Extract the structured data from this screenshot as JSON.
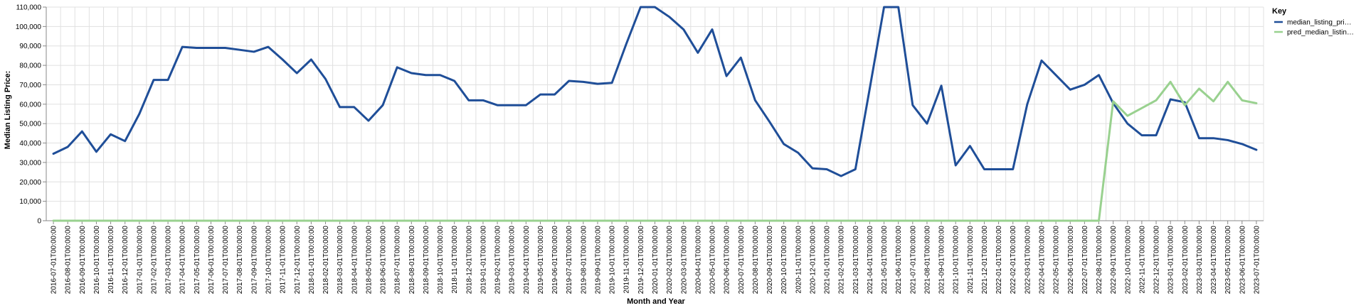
{
  "chart_data": {
    "type": "line",
    "xlabel": "Month and Year",
    "ylabel": "Median Listing Price:",
    "ylim": [
      0,
      110000
    ],
    "yticks": [
      "0",
      "10,000",
      "20,000",
      "30,000",
      "40,000",
      "50,000",
      "60,000",
      "70,000",
      "80,000",
      "90,000",
      "100,000",
      "110,000"
    ],
    "grid": true,
    "legend": {
      "title": "Key",
      "position": "right"
    },
    "x": [
      "2016-07-01T00:00:00",
      "2016-08-01T00:00:00",
      "2016-09-01T00:00:00",
      "2016-10-01T00:00:00",
      "2016-11-01T00:00:00",
      "2016-12-01T00:00:00",
      "2017-01-01T00:00:00",
      "2017-02-01T00:00:00",
      "2017-03-01T00:00:00",
      "2017-04-01T00:00:00",
      "2017-05-01T00:00:00",
      "2017-06-01T00:00:00",
      "2017-07-01T00:00:00",
      "2017-08-01T00:00:00",
      "2017-09-01T00:00:00",
      "2017-10-01T00:00:00",
      "2017-11-01T00:00:00",
      "2017-12-01T00:00:00",
      "2018-01-01T00:00:00",
      "2018-02-01T00:00:00",
      "2018-03-01T00:00:00",
      "2018-04-01T00:00:00",
      "2018-05-01T00:00:00",
      "2018-06-01T00:00:00",
      "2018-07-01T00:00:00",
      "2018-08-01T00:00:00",
      "2018-09-01T00:00:00",
      "2018-10-01T00:00:00",
      "2018-11-01T00:00:00",
      "2018-12-01T00:00:00",
      "2019-01-01T00:00:00",
      "2019-02-01T00:00:00",
      "2019-03-01T00:00:00",
      "2019-04-01T00:00:00",
      "2019-05-01T00:00:00",
      "2019-06-01T00:00:00",
      "2019-07-01T00:00:00",
      "2019-08-01T00:00:00",
      "2019-09-01T00:00:00",
      "2019-10-01T00:00:00",
      "2019-11-01T00:00:00",
      "2019-12-01T00:00:00",
      "2020-01-01T00:00:00",
      "2020-02-01T00:00:00",
      "2020-03-01T00:00:00",
      "2020-04-01T00:00:00",
      "2020-05-01T00:00:00",
      "2020-06-01T00:00:00",
      "2020-07-01T00:00:00",
      "2020-08-01T00:00:00",
      "2020-09-01T00:00:00",
      "2020-10-01T00:00:00",
      "2020-11-01T00:00:00",
      "2020-12-01T00:00:00",
      "2021-01-01T00:00:00",
      "2021-02-01T00:00:00",
      "2021-03-01T00:00:00",
      "2021-04-01T00:00:00",
      "2021-05-01T00:00:00",
      "2021-06-01T00:00:00",
      "2021-07-01T00:00:00",
      "2021-08-01T00:00:00",
      "2021-09-01T00:00:00",
      "2021-10-01T00:00:00",
      "2021-11-01T00:00:00",
      "2021-12-01T00:00:00",
      "2022-01-01T00:00:00",
      "2022-02-01T00:00:00",
      "2022-03-01T00:00:00",
      "2022-04-01T00:00:00",
      "2022-05-01T00:00:00",
      "2022-06-01T00:00:00",
      "2022-07-01T00:00:00",
      "2022-08-01T00:00:00",
      "2022-09-01T00:00:00",
      "2022-10-01T00:00:00",
      "2022-11-01T00:00:00",
      "2022-12-01T00:00:00",
      "2023-01-01T00:00:00",
      "2023-02-01T00:00:00",
      "2023-03-01T00:00:00",
      "2023-04-01T00:00:00",
      "2023-05-01T00:00:00",
      "2023-06-01T00:00:00",
      "2023-07-01T00:00:00"
    ],
    "series": [
      {
        "name": "median_listing_pri…",
        "color": "#1f4e98",
        "values": [
          34500,
          38000,
          46000,
          35500,
          44500,
          41000,
          55000,
          72500,
          72500,
          89500,
          89000,
          89000,
          89000,
          88000,
          87000,
          89500,
          83000,
          76000,
          83000,
          73000,
          58500,
          58500,
          51500,
          59500,
          79000,
          76000,
          75000,
          75000,
          72000,
          62000,
          62000,
          59500,
          59500,
          59500,
          65000,
          65000,
          72000,
          71500,
          70500,
          71000,
          91000,
          110000,
          110000,
          105000,
          98500,
          86500,
          98500,
          74500,
          84000,
          62000,
          51000,
          39500,
          35000,
          27000,
          26500,
          23000,
          26500,
          68000,
          110000,
          110000,
          59500,
          50000,
          69500,
          28500,
          38500,
          26500,
          26500,
          26500,
          60000,
          82500,
          75000,
          67500,
          70000,
          75000,
          60500,
          50000,
          44000,
          44000,
          62500,
          61000,
          42500,
          42500,
          41500,
          39500,
          36500
        ]
      },
      {
        "name": "pred_median_listin…",
        "color": "#99d18f",
        "values": [
          0,
          0,
          0,
          0,
          0,
          0,
          0,
          0,
          0,
          0,
          0,
          0,
          0,
          0,
          0,
          0,
          0,
          0,
          0,
          0,
          0,
          0,
          0,
          0,
          0,
          0,
          0,
          0,
          0,
          0,
          0,
          0,
          0,
          0,
          0,
          0,
          0,
          0,
          0,
          0,
          0,
          0,
          0,
          0,
          0,
          0,
          0,
          0,
          0,
          0,
          0,
          0,
          0,
          0,
          0,
          0,
          0,
          0,
          0,
          0,
          0,
          0,
          0,
          0,
          0,
          0,
          0,
          0,
          0,
          0,
          0,
          0,
          0,
          0,
          61500,
          54000,
          58000,
          62000,
          71500,
          59500,
          68000,
          61500,
          71500,
          62000,
          60500
        ]
      }
    ]
  }
}
